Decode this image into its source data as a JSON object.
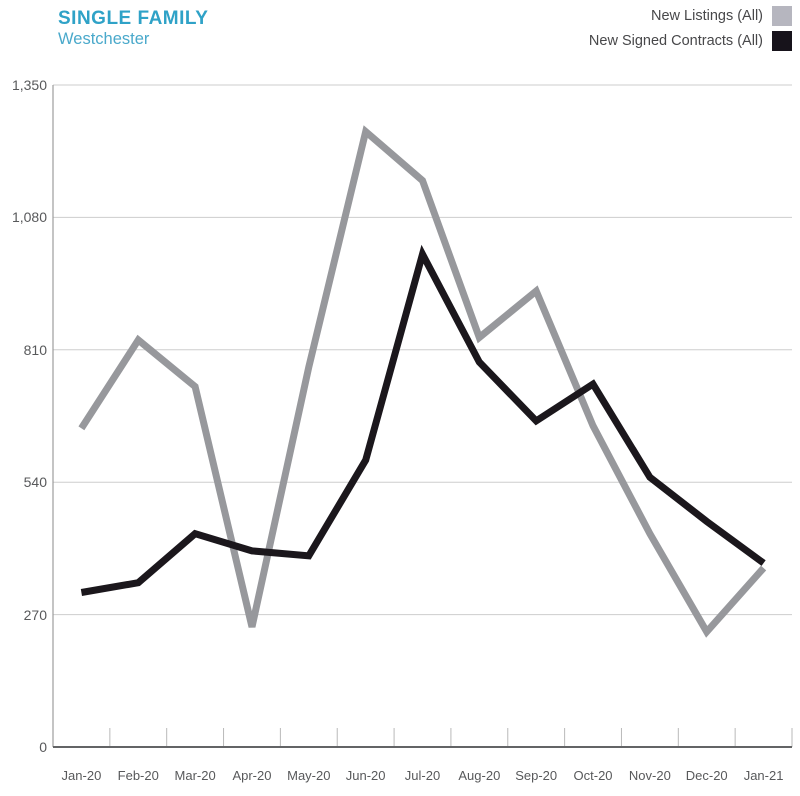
{
  "header": {
    "title": "SINGLE FAMILY",
    "subtitle": "Westchester"
  },
  "legend": [
    {
      "label": "New Listings (All)",
      "swatch_color": "#b6b6bf",
      "swatch_icon": "gray-square-icon"
    },
    {
      "label": "New Signed Contracts (All)",
      "swatch_color": "#17131b",
      "swatch_icon": "black-square-icon"
    }
  ],
  "colors": {
    "title_accent": "#2fa2c7",
    "subtitle_accent": "#4aa9cb",
    "listings_line": "#97989c",
    "contracts_line": "#1b171c",
    "gridline": "#cdcdcd",
    "axis_line": "#636466",
    "y_axis_line": "#9c9c9c",
    "tick": "#b9b9b9",
    "axis_text": "#58595b"
  },
  "chart_data": {
    "type": "line",
    "title": "SINGLE FAMILY",
    "subtitle": "Westchester",
    "xlabel": "",
    "ylabel": "",
    "grid": true,
    "legend_position": "top-right",
    "ylim": [
      0,
      1350
    ],
    "yticks": [
      0,
      270,
      540,
      810,
      1080,
      1350
    ],
    "ytick_labels": [
      "0",
      "270",
      "540",
      "810",
      "1,080",
      "1,350"
    ],
    "categories": [
      "Jan-20",
      "Feb-20",
      "Mar-20",
      "Apr-20",
      "May-20",
      "Jun-20",
      "Jul-20",
      "Aug-20",
      "Sep-20",
      "Oct-20",
      "Nov-20",
      "Dec-20",
      "Jan-21"
    ],
    "series": [
      {
        "name": "New Listings (All)",
        "color": "#97989c",
        "values": [
          650,
          830,
          735,
          245,
          775,
          1255,
          1155,
          835,
          930,
          655,
          435,
          235,
          365
        ]
      },
      {
        "name": "New Signed Contracts (All)",
        "color": "#1b171c",
        "values": [
          315,
          335,
          435,
          400,
          390,
          585,
          1005,
          785,
          665,
          740,
          550,
          460,
          375
        ]
      }
    ]
  }
}
